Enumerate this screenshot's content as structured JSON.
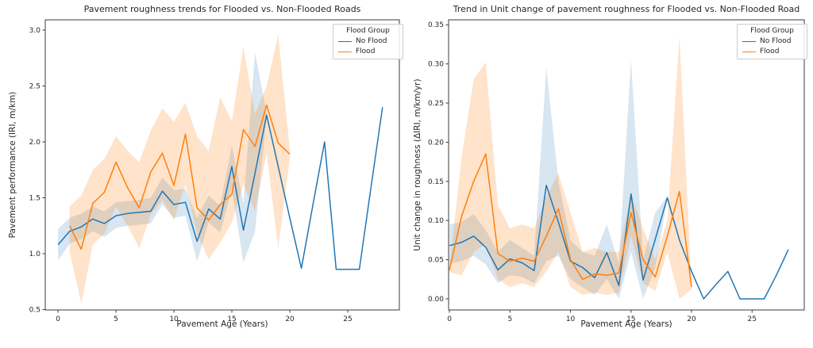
{
  "legend": {
    "title": "Flood Group",
    "entries": [
      {
        "label": "No Flood",
        "color": "#1f77b4"
      },
      {
        "label": "Flood",
        "color": "#ff7f0e"
      }
    ]
  },
  "chart_data": [
    {
      "type": "line",
      "title": "Pavement roughness trends for Flooded vs. Non-Flooded Roads",
      "xlabel": "Pavement Age (Years)",
      "ylabel": "Pavement performance (IRI, m/km)",
      "xlim": [
        -1.1,
        29.45
      ],
      "ylim": [
        0.497,
        3.092
      ],
      "xticks": [
        0,
        5,
        10,
        15,
        20,
        25
      ],
      "yticks": [
        0.5,
        1.0,
        1.5,
        2.0,
        2.5,
        3.0
      ],
      "ytick_decimals": 1,
      "grid": false,
      "legend_position": "upper right",
      "series": [
        {
          "name": "No Flood",
          "color": "#1f77b4",
          "band_color": "rgba(31,119,180,0.18)",
          "x": [
            0,
            1,
            2,
            3,
            4,
            5,
            6,
            7,
            8,
            9,
            10,
            11,
            12,
            13,
            14,
            15,
            16,
            17,
            18,
            19,
            20,
            21,
            22,
            23,
            24,
            25,
            26,
            27,
            28
          ],
          "y": [
            1.08,
            1.2,
            1.24,
            1.31,
            1.27,
            1.34,
            1.36,
            1.37,
            1.38,
            1.56,
            1.44,
            1.46,
            1.11,
            1.4,
            1.31,
            1.78,
            1.21,
            1.72,
            2.24,
            1.78,
            1.32,
            0.87,
            1.44,
            2.0,
            0.86,
            0.86,
            0.86,
            1.59,
            2.31
          ],
          "band_x": [
            0,
            1,
            2,
            3,
            4,
            5,
            6,
            7,
            8,
            9,
            10,
            11,
            12,
            13,
            14,
            15,
            16,
            17,
            18
          ],
          "band_upper": [
            1.22,
            1.32,
            1.36,
            1.42,
            1.38,
            1.46,
            1.47,
            1.48,
            1.5,
            1.68,
            1.57,
            1.58,
            1.32,
            1.52,
            1.43,
            1.97,
            1.45,
            2.8,
            2.26
          ],
          "band_lower": [
            0.94,
            1.09,
            1.13,
            1.2,
            1.15,
            1.23,
            1.25,
            1.26,
            1.27,
            1.44,
            1.32,
            1.34,
            0.93,
            1.28,
            1.19,
            1.58,
            0.92,
            1.2,
            2.22
          ]
        },
        {
          "name": "Flood",
          "color": "#ff7f0e",
          "band_color": "rgba(255,127,14,0.22)",
          "x": [
            1,
            2,
            3,
            4,
            5,
            6,
            7,
            8,
            9,
            10,
            11,
            12,
            13,
            14,
            15,
            16,
            17,
            18,
            19,
            20
          ],
          "y": [
            1.25,
            1.04,
            1.45,
            1.55,
            1.82,
            1.59,
            1.41,
            1.73,
            1.9,
            1.61,
            2.07,
            1.41,
            1.3,
            1.44,
            1.53,
            2.11,
            1.96,
            2.33,
            1.99,
            1.89
          ],
          "band_x": [
            1,
            2,
            3,
            4,
            5,
            6,
            7,
            8,
            9,
            10,
            11,
            12,
            13,
            14,
            15,
            16,
            17,
            18,
            19,
            20
          ],
          "band_upper": [
            1.42,
            1.52,
            1.75,
            1.85,
            2.05,
            1.92,
            1.82,
            2.1,
            2.3,
            2.18,
            2.35,
            2.05,
            1.92,
            2.4,
            2.18,
            2.85,
            2.25,
            2.5,
            2.96,
            1.93
          ],
          "band_lower": [
            1.02,
            0.55,
            1.08,
            1.18,
            1.42,
            1.25,
            1.05,
            1.35,
            1.48,
            1.3,
            1.62,
            1.18,
            0.95,
            1.1,
            1.28,
            1.62,
            1.38,
            1.9,
            1.05,
            1.85
          ]
        }
      ]
    },
    {
      "type": "line",
      "title": "Trend in Unit change of pavement roughness for Flooded vs. Non-Flooded Road",
      "xlabel": "Pavement Age (Years)",
      "ylabel": "Unit change in roughness (ΔIRI, m/km/yr)",
      "xlim": [
        -0.07,
        29.31
      ],
      "ylim": [
        -0.0142,
        0.3563
      ],
      "xticks": [
        0,
        5,
        10,
        15,
        20,
        25
      ],
      "yticks": [
        0.0,
        0.05,
        0.1,
        0.15,
        0.2,
        0.25,
        0.3,
        0.35
      ],
      "ytick_decimals": 2,
      "grid": false,
      "legend_position": "upper right",
      "series": [
        {
          "name": "No Flood",
          "color": "#1f77b4",
          "band_color": "rgba(31,119,180,0.18)",
          "x": [
            0,
            1,
            2,
            3,
            4,
            5,
            6,
            7,
            8,
            9,
            10,
            11,
            12,
            13,
            14,
            15,
            16,
            17,
            18,
            19,
            20,
            21,
            22,
            23,
            24,
            25,
            26,
            27,
            28
          ],
          "y": [
            0.068,
            0.072,
            0.08,
            0.066,
            0.037,
            0.051,
            0.046,
            0.036,
            0.145,
            0.098,
            0.048,
            0.04,
            0.027,
            0.059,
            0.017,
            0.134,
            0.024,
            0.076,
            0.129,
            0.075,
            0.035,
            0.0,
            0.018,
            0.035,
            0.0,
            0.0,
            0.0,
            0.03,
            0.063
          ],
          "band_x": [
            0,
            1,
            2,
            3,
            4,
            5,
            6,
            7,
            8,
            9,
            10,
            11,
            12,
            13,
            14,
            15,
            16,
            17,
            18
          ],
          "band_upper": [
            0.095,
            0.098,
            0.108,
            0.088,
            0.06,
            0.075,
            0.065,
            0.055,
            0.295,
            0.15,
            0.075,
            0.06,
            0.055,
            0.095,
            0.045,
            0.305,
            0.05,
            0.11,
            0.131
          ],
          "band_lower": [
            0.045,
            0.048,
            0.055,
            0.044,
            0.02,
            0.03,
            0.028,
            0.02,
            0.048,
            0.055,
            0.025,
            0.015,
            0.005,
            0.025,
            0.0,
            0.06,
            0.0,
            0.04,
            0.127
          ]
        },
        {
          "name": "Flood",
          "color": "#ff7f0e",
          "band_color": "rgba(255,127,14,0.22)",
          "x": [
            0,
            1,
            2,
            3,
            4,
            5,
            6,
            7,
            8,
            9,
            10,
            11,
            12,
            13,
            14,
            15,
            16,
            17,
            18,
            19,
            20
          ],
          "y": [
            0.037,
            0.105,
            0.15,
            0.185,
            0.058,
            0.048,
            0.052,
            0.048,
            0.08,
            0.115,
            0.05,
            0.025,
            0.032,
            0.03,
            0.033,
            0.11,
            0.05,
            0.028,
            0.08,
            0.137,
            0.015
          ],
          "band_x": [
            0,
            1,
            2,
            3,
            4,
            5,
            6,
            7,
            8,
            9,
            10,
            11,
            12,
            13,
            14,
            15,
            16,
            17,
            18,
            19,
            20
          ],
          "band_upper": [
            0.04,
            0.18,
            0.28,
            0.302,
            0.12,
            0.09,
            0.095,
            0.09,
            0.13,
            0.16,
            0.11,
            0.06,
            0.065,
            0.06,
            0.06,
            0.135,
            0.09,
            0.05,
            0.1,
            0.335,
            0.018
          ],
          "band_lower": [
            0.034,
            0.03,
            0.06,
            0.07,
            0.025,
            0.015,
            0.02,
            0.015,
            0.035,
            0.06,
            0.015,
            0.005,
            0.008,
            0.005,
            0.008,
            0.08,
            0.02,
            0.01,
            0.06,
            0.0,
            0.012
          ]
        }
      ]
    }
  ]
}
